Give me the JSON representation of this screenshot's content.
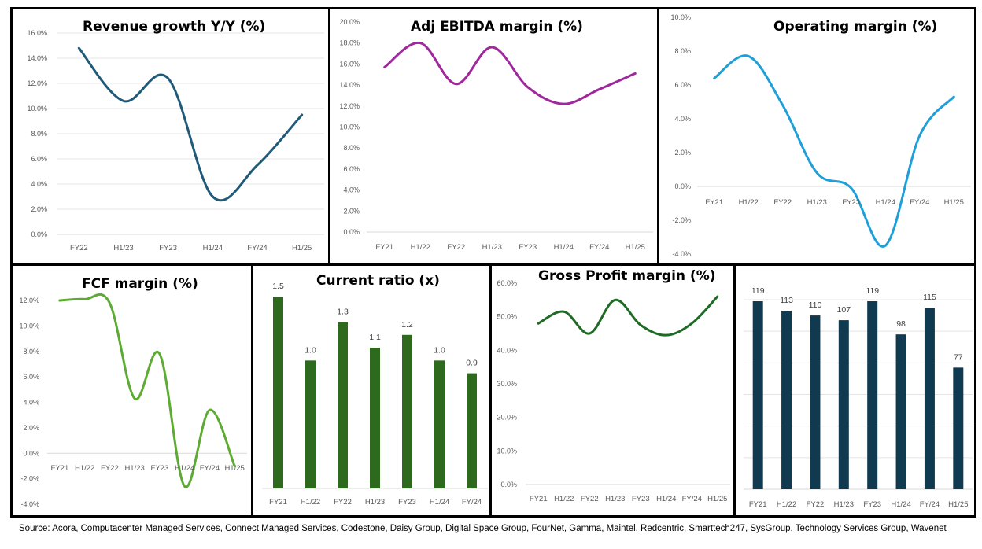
{
  "source": "Source: Acora, Computacenter Managed Services, Connect Managed Services, Codestone, Daisy Group, Digital Space Group, FourNet, Gamma, Maintel, Redcentric, Smarttech247, SysGroup, Technology Services Group, Wavenet",
  "chart_data": [
    {
      "type": "line",
      "title": "Revenue growth Y/Y (%)",
      "categories": [
        "FY22",
        "H1/23",
        "FY23",
        "H1/24",
        "FY/24",
        "H1/25"
      ],
      "values": [
        14.8,
        10.6,
        12.4,
        3.0,
        5.5,
        9.5
      ],
      "ylim": [
        0,
        16
      ],
      "ystep": 2,
      "yformat": "pct",
      "color": "#1f5a78",
      "grid": true
    },
    {
      "type": "line",
      "title": "Adj EBITDA margin (%)",
      "categories": [
        "FY21",
        "H1/22",
        "FY22",
        "H1/23",
        "FY23",
        "H1/24",
        "FY/24",
        "H1/25"
      ],
      "values": [
        15.7,
        18.0,
        14.1,
        17.6,
        13.8,
        12.2,
        13.6,
        15.1
      ],
      "ylim": [
        0,
        20
      ],
      "ystep": 2,
      "yformat": "pct",
      "color": "#a0279c",
      "grid": false
    },
    {
      "type": "line",
      "title": "Operating margin (%)",
      "categories": [
        "FY21",
        "H1/22",
        "FY22",
        "H1/23",
        "FY23",
        "H1/24",
        "FY/24",
        "H1/25"
      ],
      "values": [
        6.4,
        7.7,
        4.8,
        0.8,
        -0.1,
        -3.5,
        3.0,
        5.3
      ],
      "ylim": [
        -4,
        10
      ],
      "ystep": 2,
      "yformat": "pct",
      "color": "#1e9fd8",
      "grid": false
    },
    {
      "type": "line",
      "title": "FCF margin (%)",
      "categories": [
        "FY21",
        "H1/22",
        "FY22",
        "H1/23",
        "FY23",
        "H1/24",
        "FY/24",
        "H1/25"
      ],
      "values": [
        12.0,
        12.1,
        11.8,
        4.3,
        7.8,
        -2.6,
        3.4,
        -1.0
      ],
      "ylim": [
        -4,
        12
      ],
      "ystep": 2,
      "yformat": "pct",
      "color": "#5eab33",
      "grid": false
    },
    {
      "type": "bar",
      "title": "Current ratio (x)",
      "categories": [
        "FY21",
        "H1/22",
        "FY22",
        "H1/23",
        "FY23",
        "H1/24",
        "FY/24"
      ],
      "values": [
        1.5,
        1.0,
        1.3,
        1.1,
        1.2,
        1.0,
        0.9
      ],
      "labels": [
        "1.5",
        "1.0",
        "1.3",
        "1.1",
        "1.2",
        "1.0",
        "0.9"
      ],
      "ylim": [
        0,
        1.5
      ],
      "color": "#2e6a1e",
      "grid": false
    },
    {
      "type": "line",
      "title": "Gross Profit margin (%)",
      "categories": [
        "FY21",
        "H1/22",
        "FY22",
        "H1/23",
        "FY23",
        "H1/24",
        "FY/24",
        "H1/25"
      ],
      "values": [
        48.0,
        51.5,
        45.0,
        55.0,
        47.5,
        44.5,
        48.0,
        56.0
      ],
      "ylim": [
        0,
        60
      ],
      "ystep": 10,
      "yformat": "pct",
      "color": "#1e6b26",
      "grid": false
    },
    {
      "type": "bar",
      "title": "",
      "categories": [
        "FY21",
        "H1/22",
        "FY22",
        "H1/23",
        "FY23",
        "H1/24",
        "FY/24",
        "H1/25"
      ],
      "values": [
        119,
        113,
        110,
        107,
        119,
        98,
        115,
        77
      ],
      "labels": [
        "119",
        "113",
        "110",
        "107",
        "119",
        "98",
        "115",
        "77"
      ],
      "ylim": [
        0,
        120
      ],
      "ygrid_step": 20,
      "color": "#0f3a50",
      "grid": true
    }
  ]
}
